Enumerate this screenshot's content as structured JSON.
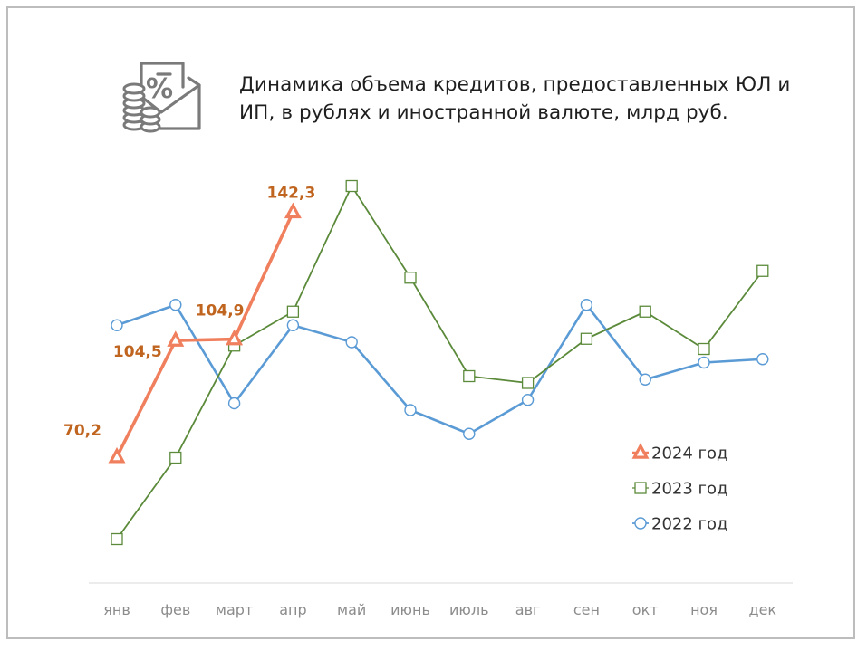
{
  "header": {
    "title_bold": "Динамика объема кредитов, предоставленных ЮЛ и ИП",
    "title_rest": ", в рублях и иностранной валюте, млрд руб.",
    "icon": "percent-envelope-coins-icon"
  },
  "chart_data": {
    "type": "line",
    "categories": [
      "янв",
      "фев",
      "март",
      "апр",
      "май",
      "июнь",
      "июль",
      "авг",
      "сен",
      "окт",
      "ноя",
      "дек"
    ],
    "ylim": [
      40,
      160
    ],
    "grid": false,
    "legend_position": "bottom-right",
    "series": [
      {
        "name": "2024 год",
        "color": "#f07f5e",
        "marker": "triangle",
        "values": [
          70.2,
          104.5,
          104.9,
          142.3,
          null,
          null,
          null,
          null,
          null,
          null,
          null,
          null
        ],
        "labels": [
          "70,2",
          "104,5",
          "104,9",
          "142,3"
        ]
      },
      {
        "name": "2023 год",
        "color": "#5b8a3a",
        "marker": "square",
        "values": [
          46,
          70,
          103,
          113,
          150,
          123,
          94,
          92,
          105,
          113,
          102,
          125
        ]
      },
      {
        "name": "2022 год",
        "color": "#5b9bd5",
        "marker": "circle",
        "values": [
          109,
          115,
          86,
          109,
          104,
          84,
          77,
          87,
          115,
          93,
          98,
          99
        ]
      }
    ]
  }
}
